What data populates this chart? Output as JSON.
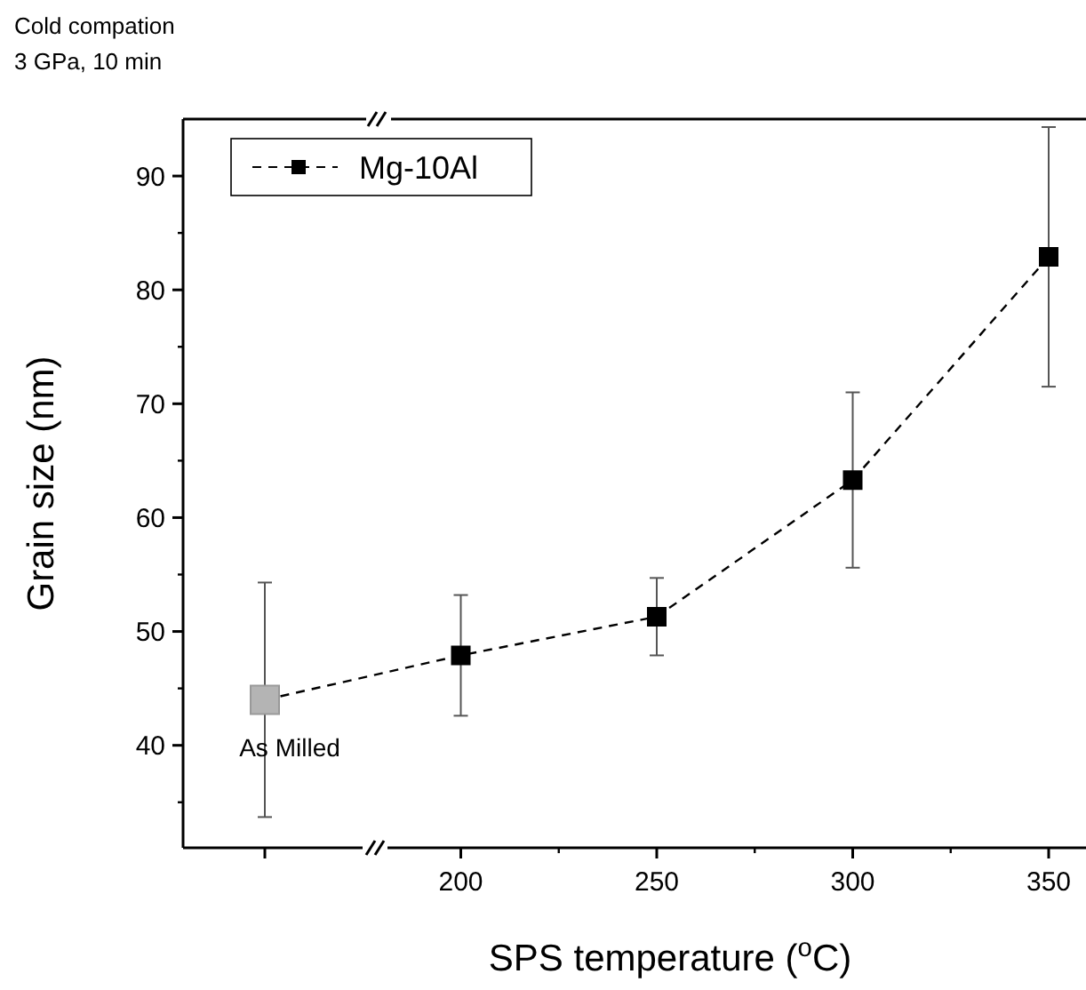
{
  "chart_data": {
    "type": "line",
    "title": "Cold compation",
    "subtitle": "3 GPa, 10 min",
    "xlabel": "SPS temperature ($^{o}$C)",
    "ylabel": "Grain size (nm)",
    "categories": [
      null,
      "200",
      "250",
      "300",
      "350"
    ],
    "series": [
      {
        "name": "Mg-10Al",
        "color": "#000000",
        "colors": [
          "#b4b4b4",
          "#000000",
          "#000000",
          "#000000",
          "#000000"
        ],
        "values": [
          44.0,
          47.9,
          51.3,
          63.3,
          82.9
        ],
        "errors": [
          10.3,
          5.3,
          3.4,
          7.7,
          11.4
        ]
      }
    ],
    "annotations": [
      "As Milled"
    ],
    "ylim": [
      31,
      95
    ],
    "yticks": [
      40,
      50,
      60,
      70,
      80,
      90
    ],
    "grid": false,
    "legend": "top left",
    "marker": "square",
    "line_style": "dashed"
  }
}
